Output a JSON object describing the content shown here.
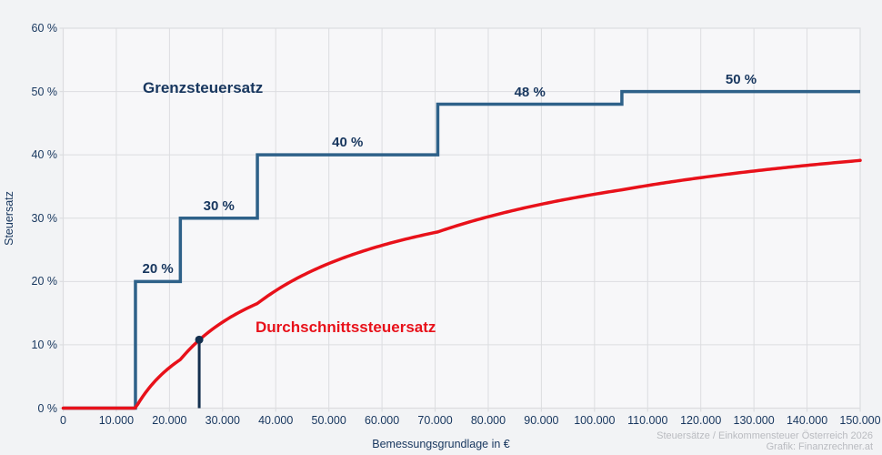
{
  "series_labels": {
    "marginal": "Grenzsteuersatz",
    "average": "Durchschnittssteuersatz"
  },
  "axes": {
    "x_label": "Bemessungsgrundlage in €",
    "y_label": "Steuersatz",
    "x_ticks": [
      "0",
      "10.000",
      "20.000",
      "30.000",
      "40.000",
      "50.000",
      "60.000",
      "70.000",
      "80.000",
      "90.000",
      "100.000",
      "110.000",
      "120.000",
      "130.000",
      "140.000",
      "150.000"
    ],
    "y_ticks": [
      "0 %",
      "10 %",
      "20 %",
      "30 %",
      "40 %",
      "50 %",
      "60 %"
    ]
  },
  "footer": {
    "line1": "Steuersätze / Einkommensteuer Österreich 2026",
    "line2": "Grafik: Finanzrechner.at"
  },
  "colors": {
    "navy_text": "#17365e",
    "marginal_line_blue": "#2e6189",
    "average_line_red": "#e8111a",
    "grid": "#dcdde0",
    "plot_border": "#dcdde0",
    "plot_background": "#f7f7f9",
    "page_background": "#f2f3f5",
    "marker_navy": "#14304f",
    "footer_gray": "#b9bbc0"
  },
  "chart_data": {
    "type": "line",
    "title": "",
    "xlabel": "Bemessungsgrundlage in €",
    "ylabel": "Steuersatz",
    "xlim": [
      0,
      150000
    ],
    "ylim": [
      0,
      60
    ],
    "grid": true,
    "x_tick_values": [
      0,
      10000,
      20000,
      30000,
      40000,
      50000,
      60000,
      70000,
      80000,
      90000,
      100000,
      110000,
      120000,
      130000,
      140000,
      150000
    ],
    "y_tick_values": [
      0,
      10,
      20,
      30,
      40,
      50,
      60
    ],
    "series": [
      {
        "name": "Grenzsteuersatz",
        "style": "step",
        "color": "#2e6189",
        "brackets": [
          {
            "up_to": 13600,
            "rate": 0,
            "label": ""
          },
          {
            "up_to": 22050,
            "rate": 20,
            "label": "20 %"
          },
          {
            "up_to": 36550,
            "rate": 30,
            "label": "30 %"
          },
          {
            "up_to": 70500,
            "rate": 40,
            "label": "40 %"
          },
          {
            "up_to": 105150,
            "rate": 48,
            "label": "48 %"
          },
          {
            "up_to": 150000,
            "rate": 50,
            "label": "50 %"
          }
        ]
      },
      {
        "name": "Durchschnittssteuersatz",
        "style": "smooth",
        "color": "#e8111a",
        "points": [
          [
            0,
            0
          ],
          [
            5000,
            0
          ],
          [
            10000,
            0
          ],
          [
            13600,
            0
          ],
          [
            15000,
            1.9
          ],
          [
            17500,
            4.3
          ],
          [
            20000,
            6.4
          ],
          [
            22050,
            7.7
          ],
          [
            25000,
            10.3
          ],
          [
            27500,
            11.9
          ],
          [
            30000,
            13.6
          ],
          [
            35000,
            15.9
          ],
          [
            36550,
            16.5
          ],
          [
            40000,
            18.6
          ],
          [
            45000,
            20.9
          ],
          [
            50000,
            22.8
          ],
          [
            55000,
            24.4
          ],
          [
            60000,
            25.7
          ],
          [
            65000,
            26.8
          ],
          [
            70500,
            27.8
          ],
          [
            75000,
            29.0
          ],
          [
            80000,
            30.2
          ],
          [
            85000,
            31.3
          ],
          [
            90000,
            32.2
          ],
          [
            95000,
            33.0
          ],
          [
            100000,
            33.8
          ],
          [
            105150,
            34.5
          ],
          [
            110000,
            35.2
          ],
          [
            115000,
            35.8
          ],
          [
            120000,
            36.4
          ],
          [
            125000,
            36.9
          ],
          [
            130000,
            37.4
          ],
          [
            135000,
            37.9
          ],
          [
            140000,
            38.3
          ],
          [
            145000,
            38.7
          ],
          [
            150000,
            39.1
          ]
        ]
      }
    ],
    "marker": {
      "x": 25600,
      "y_percent": 10.8
    }
  }
}
